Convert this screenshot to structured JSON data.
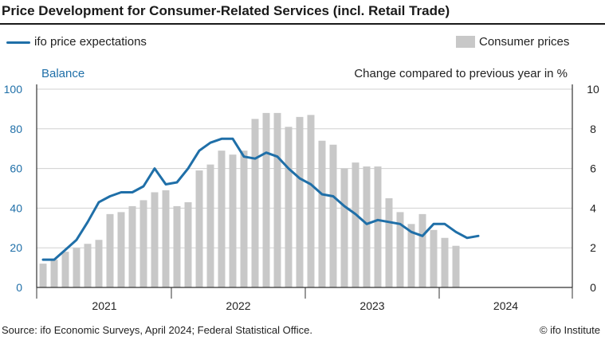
{
  "header": {
    "title": "Price Development for Consumer-Related Services (incl. Retail Trade)"
  },
  "legend": {
    "line_label": "ifo price expectations",
    "bar_label": "Consumer prices"
  },
  "footer": {
    "source": "Source: ifo Economic Surveys, April 2024; Federal Statistical Office.",
    "credit": "© ifo Institute"
  },
  "chart_data": {
    "type": "bar",
    "title": "Price Development for Consumer-Related Services (incl. Retail Trade)",
    "left_axis": {
      "label": "Balance",
      "range": [
        0,
        100
      ],
      "ticks": [
        0,
        20,
        40,
        60,
        80,
        100
      ],
      "color": "#1f6fa8"
    },
    "right_axis": {
      "label": "Change compared to previous year in %",
      "range": [
        0,
        10
      ],
      "ticks": [
        0,
        2,
        4,
        6,
        8,
        10
      ]
    },
    "year_labels": [
      "2021",
      "2022",
      "2023",
      "2024"
    ],
    "months": [
      "2021-01",
      "2021-02",
      "2021-03",
      "2021-04",
      "2021-05",
      "2021-06",
      "2021-07",
      "2021-08",
      "2021-09",
      "2021-10",
      "2021-11",
      "2021-12",
      "2022-01",
      "2022-02",
      "2022-03",
      "2022-04",
      "2022-05",
      "2022-06",
      "2022-07",
      "2022-08",
      "2022-09",
      "2022-10",
      "2022-11",
      "2022-12",
      "2023-01",
      "2023-02",
      "2023-03",
      "2023-04",
      "2023-05",
      "2023-06",
      "2023-07",
      "2023-08",
      "2023-09",
      "2023-10",
      "2023-11",
      "2023-12",
      "2024-01",
      "2024-02",
      "2024-03",
      "2024-04"
    ],
    "series": [
      {
        "name": "Consumer prices",
        "type": "bar",
        "axis": "right",
        "color": "#c8c8c8",
        "values": [
          1.2,
          1.4,
          1.8,
          2.0,
          2.2,
          2.4,
          3.7,
          3.8,
          4.1,
          4.4,
          4.8,
          4.9,
          4.1,
          4.3,
          5.9,
          6.2,
          6.9,
          6.7,
          6.9,
          8.5,
          8.8,
          8.8,
          8.1,
          8.6,
          8.7,
          7.4,
          7.2,
          6.0,
          6.3,
          6.1,
          6.1,
          4.5,
          3.8,
          3.2,
          3.7,
          2.9,
          2.5,
          2.1
        ]
      },
      {
        "name": "ifo price expectations",
        "type": "line",
        "axis": "left",
        "color": "#1f6fa8",
        "values": [
          14,
          14,
          19,
          24,
          33,
          43,
          46,
          48,
          48,
          51,
          60,
          52,
          53,
          60,
          69,
          73,
          75,
          75,
          66,
          65,
          68,
          66,
          60,
          55,
          52,
          47,
          46,
          41,
          37,
          32,
          34,
          33,
          32,
          28,
          26,
          32,
          32,
          28,
          25,
          26
        ]
      }
    ],
    "grid": true
  }
}
